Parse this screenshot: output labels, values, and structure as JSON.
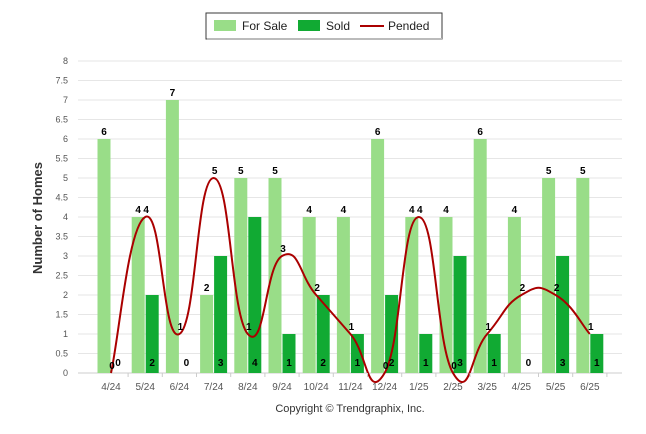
{
  "chart_data": {
    "type": "bar",
    "title": "",
    "xlabel": "",
    "ylabel": "Number of Homes",
    "ylim": [
      0,
      8
    ],
    "yticks": [
      0,
      0.5,
      1,
      1.5,
      2,
      2.5,
      3,
      3.5,
      4,
      4.5,
      5,
      5.5,
      6,
      6.5,
      7,
      7.5,
      8
    ],
    "grid": true,
    "legend_position": "top-center",
    "categories": [
      "4/24",
      "5/24",
      "6/24",
      "7/24",
      "8/24",
      "9/24",
      "10/24",
      "11/24",
      "12/24",
      "1/25",
      "2/25",
      "3/25",
      "4/25",
      "5/25",
      "6/25"
    ],
    "series": [
      {
        "name": "For Sale",
        "type": "bar",
        "color": "#99dd88",
        "values": [
          6,
          4,
          7,
          2,
          5,
          5,
          4,
          4,
          6,
          4,
          4,
          6,
          4,
          5,
          5
        ]
      },
      {
        "name": "Sold",
        "type": "bar",
        "color": "#11aa33",
        "values": [
          0,
          2,
          0,
          3,
          4,
          1,
          2,
          1,
          2,
          1,
          3,
          1,
          0,
          3,
          1
        ]
      },
      {
        "name": "Pended",
        "type": "line",
        "color": "#aa0000",
        "values": [
          0,
          4,
          1,
          5,
          1,
          3,
          2,
          1,
          0,
          4,
          0,
          1,
          2,
          2,
          1
        ]
      }
    ],
    "credit": "Copyright © Trendgraphix, Inc."
  }
}
